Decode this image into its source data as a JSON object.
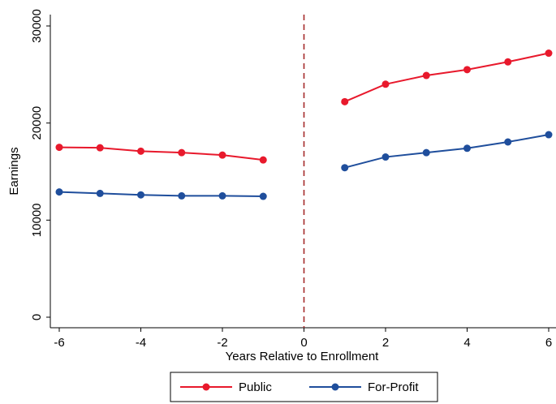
{
  "chart_data": {
    "type": "line",
    "title": "",
    "xlabel": "Years Relative to Enrollment",
    "ylabel": "Earnings",
    "xlim": [
      -6,
      6
    ],
    "ylim": [
      0,
      30000
    ],
    "xticks": [
      -6,
      -4,
      -2,
      0,
      2,
      4,
      6
    ],
    "yticks": [
      0,
      10000,
      20000,
      30000
    ],
    "xtick_labels": [
      "-6",
      "-4",
      "-2",
      "0",
      "2",
      "4",
      "6"
    ],
    "ytick_labels": [
      "0",
      "10000",
      "20000",
      "30000"
    ],
    "grid": false,
    "legend_placement": "bottom-center",
    "vertical_reference_line": {
      "x": 0,
      "style": "dashed",
      "color": "#a52a2a"
    },
    "series": [
      {
        "name": "Public",
        "color": "#e8192c",
        "segments": [
          {
            "x": [
              -6,
              -5,
              -4,
              -3,
              -2,
              -1
            ],
            "y": [
              17500,
              17450,
              17100,
              16950,
              16700,
              16200
            ]
          },
          {
            "x": [
              1,
              2,
              3,
              4,
              5,
              6
            ],
            "y": [
              22200,
              24000,
              24900,
              25500,
              26300,
              27200
            ]
          }
        ]
      },
      {
        "name": "For-Profit",
        "color": "#1f4e9c",
        "segments": [
          {
            "x": [
              -6,
              -5,
              -4,
              -3,
              -2,
              -1
            ],
            "y": [
              12900,
              12750,
              12600,
              12500,
              12500,
              12450
            ]
          },
          {
            "x": [
              1,
              2,
              3,
              4,
              5,
              6
            ],
            "y": [
              15400,
              16500,
              16950,
              17400,
              18050,
              18800
            ]
          }
        ]
      }
    ]
  }
}
